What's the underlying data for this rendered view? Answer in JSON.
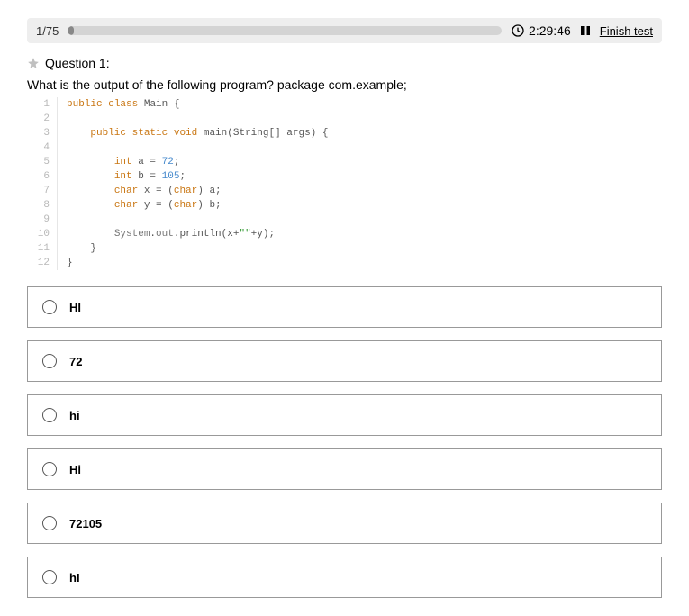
{
  "topbar": {
    "counter": "1/75",
    "progress_pct": 1.3,
    "timer": "2:29:46",
    "finish_label": "Finish test"
  },
  "question": {
    "header": "Question 1:",
    "prompt": "What is the output of the following program? package com.example;"
  },
  "code": [
    {
      "n": "1",
      "html": "<span class='tok-kw'>public</span> <span class='tok-kw'>class</span> <span class='tok-name'>Main</span> <span class='tok-plain'>{</span>"
    },
    {
      "n": "2",
      "html": ""
    },
    {
      "n": "3",
      "html": "    <span class='tok-kw'>public</span> <span class='tok-kw'>static</span> <span class='tok-kw'>void</span> <span class='tok-name'>main</span><span class='tok-plain'>(String[] args) {</span>"
    },
    {
      "n": "4",
      "html": ""
    },
    {
      "n": "5",
      "html": "        <span class='tok-type'>int</span> <span class='tok-plain'>a = </span><span class='tok-num'>72</span><span class='tok-plain'>;</span>"
    },
    {
      "n": "6",
      "html": "        <span class='tok-type'>int</span> <span class='tok-plain'>b = </span><span class='tok-num'>105</span><span class='tok-plain'>;</span>"
    },
    {
      "n": "7",
      "html": "        <span class='tok-type'>char</span> <span class='tok-plain'>x = (</span><span class='tok-type'>char</span><span class='tok-plain'>) a;</span>"
    },
    {
      "n": "8",
      "html": "        <span class='tok-type'>char</span> <span class='tok-plain'>y = (</span><span class='tok-type'>char</span><span class='tok-plain'>) b;</span>"
    },
    {
      "n": "9",
      "html": ""
    },
    {
      "n": "10",
      "html": "        <span class='tok-lib'>System</span><span class='tok-plain'>.</span><span class='tok-lib'>out</span><span class='tok-plain'>.println(x+</span><span class='tok-str'>\"\"</span><span class='tok-plain'>+y);</span>"
    },
    {
      "n": "11",
      "html": "    <span class='tok-plain'>}</span>"
    },
    {
      "n": "12",
      "html": "<span class='tok-plain'>}</span>"
    }
  ],
  "options": [
    {
      "label": "HI"
    },
    {
      "label": "72"
    },
    {
      "label": "hi"
    },
    {
      "label": "Hi"
    },
    {
      "label": "72105"
    },
    {
      "label": "hI"
    }
  ],
  "colors": {
    "border": "#999999",
    "topbar_bg": "#eeeeee",
    "progress_track": "#d4d4d4"
  }
}
